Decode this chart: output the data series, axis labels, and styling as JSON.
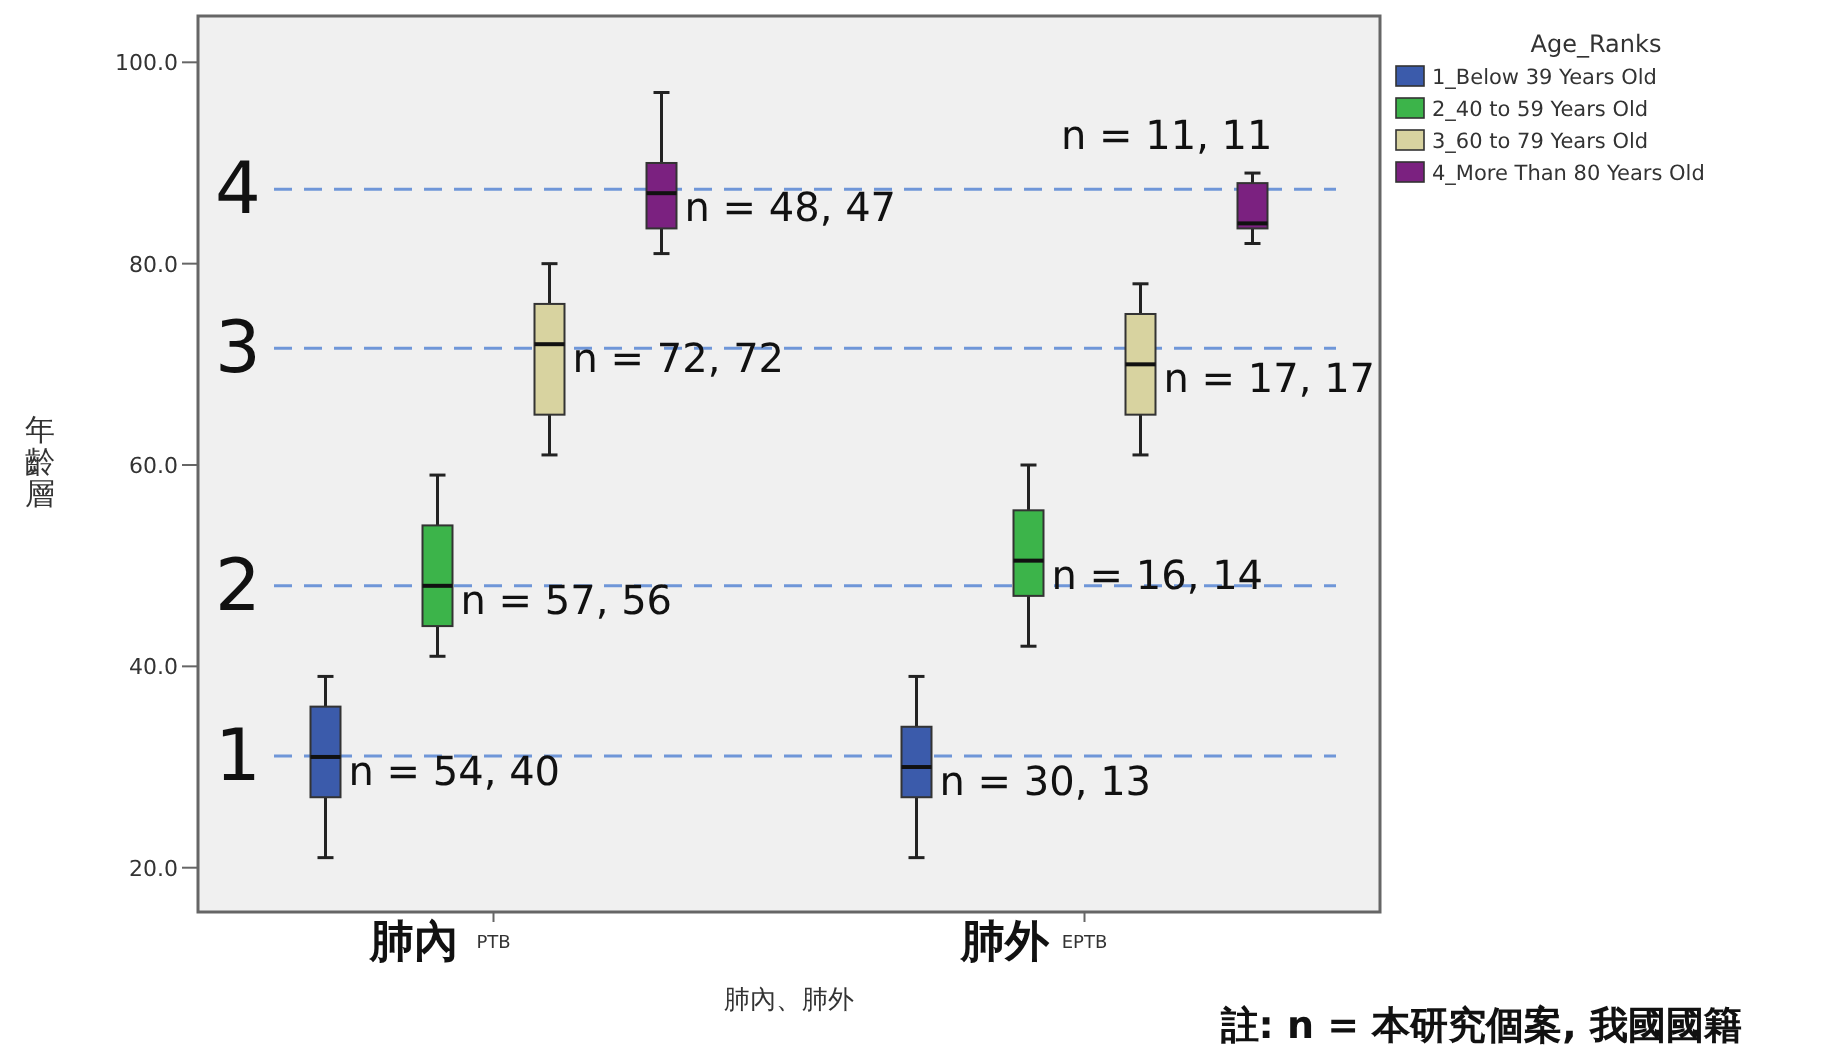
{
  "chart_data": {
    "type": "box",
    "xlabel": "肺內、肺外",
    "ylabel": "年齡層",
    "legend_title": "Age_Ranks",
    "legend": "top right",
    "grid": false,
    "categories": [
      "PTB",
      "EPTB"
    ],
    "ylim": [
      15.6,
      104.6
    ],
    "yticks": [
      {
        "value": 20,
        "label": "20.0"
      },
      {
        "value": 40,
        "label": "40.0"
      },
      {
        "value": 60,
        "label": "60.0"
      },
      {
        "value": 80,
        "label": "80.0"
      },
      {
        "value": 100,
        "label": "100.0"
      }
    ],
    "series": [
      {
        "name": "1_Below 39 Years Old",
        "color": "#3b5bab",
        "boxes": [
          {
            "low": 21,
            "q1": 27,
            "median": 31,
            "q3": 36,
            "high": 39
          },
          {
            "low": 21,
            "q1": 27,
            "median": 30,
            "q3": 34,
            "high": 39
          }
        ],
        "value_labels": [
          "n = 54, 40",
          "n = 30, 13"
        ]
      },
      {
        "name": "2_40 to 59 Years Old",
        "color": "#3cb44a",
        "boxes": [
          {
            "low": 41,
            "q1": 44,
            "median": 48,
            "q3": 54,
            "high": 59
          },
          {
            "low": 42,
            "q1": 47,
            "median": 50.5,
            "q3": 55.5,
            "high": 60
          }
        ],
        "value_labels": [
          "n = 57, 56",
          "n = 16, 14"
        ]
      },
      {
        "name": "3_60 to 79 Years Old",
        "color": "#d8d3a0",
        "boxes": [
          {
            "low": 61,
            "q1": 65,
            "median": 72,
            "q3": 76,
            "high": 80
          },
          {
            "low": 61,
            "q1": 65,
            "median": 70,
            "q3": 75,
            "high": 78
          }
        ],
        "value_labels": [
          "n = 72, 72",
          "n = 17, 17"
        ]
      },
      {
        "name": "4_More Than 80 Years Old",
        "color": "#7b2180",
        "boxes": [
          {
            "low": 81,
            "q1": 83.5,
            "median": 87,
            "q3": 90,
            "high": 97
          },
          {
            "low": 82,
            "q1": 83.5,
            "median": 84,
            "q3": 88,
            "high": 89
          }
        ],
        "value_labels": [
          "n = 48, 47",
          "n = 11, 11"
        ]
      }
    ],
    "ref_lines": [
      {
        "axis": "y",
        "value": 87.4,
        "color": "#6f96d8",
        "line_style": "dashed"
      },
      {
        "axis": "y",
        "value": 71.6,
        "color": "#6f96d8",
        "line_style": "dashed"
      },
      {
        "axis": "y",
        "value": 48,
        "color": "#6f96d8",
        "line_style": "dashed"
      },
      {
        "axis": "y",
        "value": 31.1,
        "color": "#6f96d8",
        "line_style": "dashed"
      }
    ],
    "annotations": [
      "肺內",
      "肺外",
      "4",
      "3",
      "2",
      "1",
      "註: n = 本研究個案, 我國國籍"
    ]
  }
}
